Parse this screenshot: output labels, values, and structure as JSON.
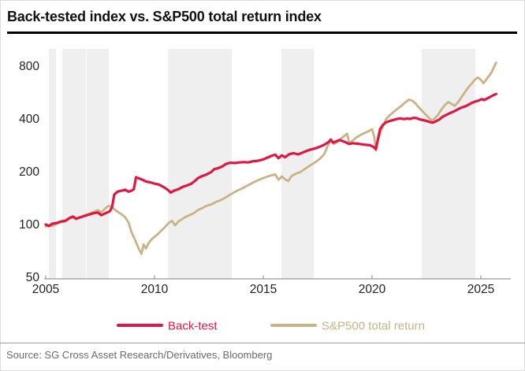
{
  "title": "Back-tested index vs. S&P500 total return index",
  "source": "Source: SG Cross Asset Research/Derivatives, Bloomberg",
  "colors": {
    "backtest": "#de1843",
    "sp500": "#c9b386",
    "band": "#f0efef",
    "axis": "#999999",
    "tick_label": "#222222",
    "title_text": "#111111",
    "source_text": "#6b6b6b"
  },
  "chart_data": {
    "type": "line",
    "title": "Back-tested index vs. S&P500 total return index",
    "y_scale": "log",
    "xlabel": "",
    "ylabel": "",
    "x_ticks": [
      2005,
      2010,
      2015,
      2020,
      2025
    ],
    "y_ticks": [
      50,
      100,
      200,
      400,
      800
    ],
    "xlim": [
      2004.9,
      2026.3
    ],
    "ylim": [
      50,
      900
    ],
    "grid": false,
    "legend_position": "bottom",
    "bands": [
      [
        2005.14,
        2005.47
      ],
      [
        2005.76,
        2006.85
      ],
      [
        2006.88,
        2007.9
      ],
      [
        2010.62,
        2013.55
      ],
      [
        2015.83,
        2017.32
      ],
      [
        2022.28,
        2024.75
      ]
    ],
    "series": [
      {
        "name": "Back-test",
        "color": "#de1843",
        "width": 3.2,
        "points": [
          [
            2005.0,
            100
          ],
          [
            2005.15,
            98
          ],
          [
            2005.3,
            101
          ],
          [
            2005.5,
            102
          ],
          [
            2005.7,
            104
          ],
          [
            2005.9,
            105
          ],
          [
            2006.1,
            109
          ],
          [
            2006.25,
            111
          ],
          [
            2006.4,
            108
          ],
          [
            2006.6,
            110
          ],
          [
            2006.8,
            112
          ],
          [
            2007.0,
            114
          ],
          [
            2007.2,
            116
          ],
          [
            2007.4,
            117
          ],
          [
            2007.55,
            113
          ],
          [
            2007.75,
            116
          ],
          [
            2007.95,
            119
          ],
          [
            2008.05,
            126
          ],
          [
            2008.15,
            148
          ],
          [
            2008.3,
            154
          ],
          [
            2008.5,
            156
          ],
          [
            2008.65,
            158
          ],
          [
            2008.8,
            154
          ],
          [
            2008.95,
            156
          ],
          [
            2009.05,
            159
          ],
          [
            2009.15,
            186
          ],
          [
            2009.3,
            183
          ],
          [
            2009.45,
            180
          ],
          [
            2009.6,
            176
          ],
          [
            2009.8,
            174
          ],
          [
            2010.0,
            171
          ],
          [
            2010.2,
            169
          ],
          [
            2010.4,
            164
          ],
          [
            2010.6,
            158
          ],
          [
            2010.75,
            152
          ],
          [
            2010.9,
            156
          ],
          [
            2011.1,
            159
          ],
          [
            2011.3,
            164
          ],
          [
            2011.5,
            167
          ],
          [
            2011.7,
            171
          ],
          [
            2011.85,
            177
          ],
          [
            2012.0,
            184
          ],
          [
            2012.2,
            189
          ],
          [
            2012.4,
            193
          ],
          [
            2012.6,
            199
          ],
          [
            2012.75,
            207
          ],
          [
            2012.9,
            209
          ],
          [
            2013.1,
            214
          ],
          [
            2013.3,
            222
          ],
          [
            2013.5,
            225
          ],
          [
            2013.7,
            224
          ],
          [
            2013.9,
            226
          ],
          [
            2014.1,
            227
          ],
          [
            2014.3,
            226
          ],
          [
            2014.5,
            229
          ],
          [
            2014.75,
            231
          ],
          [
            2015.0,
            235
          ],
          [
            2015.2,
            241
          ],
          [
            2015.4,
            247
          ],
          [
            2015.55,
            250
          ],
          [
            2015.7,
            239
          ],
          [
            2015.85,
            248
          ],
          [
            2016.0,
            242
          ],
          [
            2016.2,
            252
          ],
          [
            2016.4,
            255
          ],
          [
            2016.6,
            251
          ],
          [
            2016.8,
            257
          ],
          [
            2017.0,
            263
          ],
          [
            2017.2,
            268
          ],
          [
            2017.4,
            272
          ],
          [
            2017.6,
            278
          ],
          [
            2017.8,
            285
          ],
          [
            2018.0,
            295
          ],
          [
            2018.1,
            305
          ],
          [
            2018.2,
            293
          ],
          [
            2018.35,
            298
          ],
          [
            2018.5,
            303
          ],
          [
            2018.65,
            299
          ],
          [
            2018.8,
            294
          ],
          [
            2018.95,
            288
          ],
          [
            2019.1,
            291
          ],
          [
            2019.3,
            289
          ],
          [
            2019.5,
            287
          ],
          [
            2019.7,
            285
          ],
          [
            2019.9,
            283
          ],
          [
            2020.05,
            278
          ],
          [
            2020.17,
            269
          ],
          [
            2020.27,
            308
          ],
          [
            2020.37,
            350
          ],
          [
            2020.5,
            370
          ],
          [
            2020.65,
            383
          ],
          [
            2020.8,
            389
          ],
          [
            2021.0,
            395
          ],
          [
            2021.15,
            400
          ],
          [
            2021.3,
            403
          ],
          [
            2021.45,
            399
          ],
          [
            2021.6,
            402
          ],
          [
            2021.75,
            400
          ],
          [
            2021.9,
            406
          ],
          [
            2022.05,
            404
          ],
          [
            2022.2,
            397
          ],
          [
            2022.35,
            394
          ],
          [
            2022.5,
            390
          ],
          [
            2022.65,
            384
          ],
          [
            2022.8,
            381
          ],
          [
            2022.95,
            389
          ],
          [
            2023.1,
            398
          ],
          [
            2023.25,
            412
          ],
          [
            2023.4,
            421
          ],
          [
            2023.55,
            430
          ],
          [
            2023.7,
            438
          ],
          [
            2023.85,
            447
          ],
          [
            2024.0,
            458
          ],
          [
            2024.15,
            466
          ],
          [
            2024.3,
            473
          ],
          [
            2024.45,
            484
          ],
          [
            2024.6,
            495
          ],
          [
            2024.75,
            503
          ],
          [
            2024.9,
            509
          ],
          [
            2025.05,
            519
          ],
          [
            2025.15,
            512
          ],
          [
            2025.3,
            524
          ],
          [
            2025.45,
            536
          ],
          [
            2025.55,
            545
          ],
          [
            2025.7,
            555
          ]
        ]
      },
      {
        "name": "S&P500 total return",
        "color": "#c9b386",
        "width": 2.8,
        "points": [
          [
            2005.0,
            97
          ],
          [
            2005.15,
            99
          ],
          [
            2005.3,
            98
          ],
          [
            2005.5,
            101
          ],
          [
            2005.7,
            103
          ],
          [
            2005.9,
            104
          ],
          [
            2006.1,
            108
          ],
          [
            2006.25,
            110
          ],
          [
            2006.4,
            107
          ],
          [
            2006.6,
            110
          ],
          [
            2006.8,
            113
          ],
          [
            2007.0,
            115
          ],
          [
            2007.2,
            118
          ],
          [
            2007.4,
            121
          ],
          [
            2007.55,
            117
          ],
          [
            2007.75,
            124
          ],
          [
            2007.9,
            128
          ],
          [
            2008.05,
            125
          ],
          [
            2008.2,
            121
          ],
          [
            2008.35,
            117
          ],
          [
            2008.5,
            114
          ],
          [
            2008.65,
            110
          ],
          [
            2008.8,
            103
          ],
          [
            2008.95,
            90
          ],
          [
            2009.1,
            82
          ],
          [
            2009.25,
            74
          ],
          [
            2009.4,
            68
          ],
          [
            2009.5,
            77
          ],
          [
            2009.6,
            73
          ],
          [
            2009.75,
            79
          ],
          [
            2009.9,
            83
          ],
          [
            2010.1,
            87
          ],
          [
            2010.3,
            92
          ],
          [
            2010.5,
            97
          ],
          [
            2010.65,
            102
          ],
          [
            2010.8,
            105
          ],
          [
            2010.95,
            99
          ],
          [
            2011.1,
            104
          ],
          [
            2011.25,
            107
          ],
          [
            2011.4,
            110
          ],
          [
            2011.6,
            113
          ],
          [
            2011.8,
            116
          ],
          [
            2012.0,
            121
          ],
          [
            2012.2,
            124
          ],
          [
            2012.4,
            128
          ],
          [
            2012.6,
            130
          ],
          [
            2012.8,
            134
          ],
          [
            2013.0,
            137
          ],
          [
            2013.2,
            141
          ],
          [
            2013.4,
            146
          ],
          [
            2013.6,
            151
          ],
          [
            2013.8,
            156
          ],
          [
            2014.0,
            160
          ],
          [
            2014.2,
            165
          ],
          [
            2014.4,
            170
          ],
          [
            2014.6,
            175
          ],
          [
            2014.8,
            180
          ],
          [
            2015.0,
            184
          ],
          [
            2015.2,
            188
          ],
          [
            2015.4,
            191
          ],
          [
            2015.55,
            193
          ],
          [
            2015.7,
            180
          ],
          [
            2015.85,
            188
          ],
          [
            2016.0,
            181
          ],
          [
            2016.15,
            177
          ],
          [
            2016.3,
            189
          ],
          [
            2016.5,
            195
          ],
          [
            2016.7,
            199
          ],
          [
            2016.85,
            205
          ],
          [
            2017.0,
            211
          ],
          [
            2017.2,
            219
          ],
          [
            2017.4,
            227
          ],
          [
            2017.6,
            237
          ],
          [
            2017.8,
            252
          ],
          [
            2017.95,
            278
          ],
          [
            2018.05,
            295
          ],
          [
            2018.15,
            302
          ],
          [
            2018.25,
            288
          ],
          [
            2018.4,
            295
          ],
          [
            2018.55,
            308
          ],
          [
            2018.7,
            318
          ],
          [
            2018.85,
            330
          ],
          [
            2018.95,
            292
          ],
          [
            2019.1,
            300
          ],
          [
            2019.25,
            312
          ],
          [
            2019.4,
            320
          ],
          [
            2019.55,
            328
          ],
          [
            2019.7,
            334
          ],
          [
            2019.85,
            341
          ],
          [
            2020.0,
            350
          ],
          [
            2020.1,
            315
          ],
          [
            2020.18,
            264
          ],
          [
            2020.28,
            305
          ],
          [
            2020.4,
            340
          ],
          [
            2020.5,
            362
          ],
          [
            2020.65,
            400
          ],
          [
            2020.8,
            418
          ],
          [
            2021.0,
            440
          ],
          [
            2021.15,
            455
          ],
          [
            2021.3,
            470
          ],
          [
            2021.45,
            488
          ],
          [
            2021.6,
            505
          ],
          [
            2021.7,
            516
          ],
          [
            2021.85,
            508
          ],
          [
            2022.0,
            490
          ],
          [
            2022.15,
            465
          ],
          [
            2022.3,
            445
          ],
          [
            2022.45,
            425
          ],
          [
            2022.6,
            408
          ],
          [
            2022.75,
            391
          ],
          [
            2022.9,
            405
          ],
          [
            2023.05,
            425
          ],
          [
            2023.2,
            455
          ],
          [
            2023.35,
            480
          ],
          [
            2023.5,
            500
          ],
          [
            2023.65,
            488
          ],
          [
            2023.8,
            475
          ],
          [
            2023.95,
            498
          ],
          [
            2024.1,
            530
          ],
          [
            2024.25,
            565
          ],
          [
            2024.4,
            600
          ],
          [
            2024.55,
            630
          ],
          [
            2024.7,
            665
          ],
          [
            2024.85,
            690
          ],
          [
            2025.0,
            668
          ],
          [
            2025.12,
            640
          ],
          [
            2025.25,
            672
          ],
          [
            2025.4,
            710
          ],
          [
            2025.5,
            742
          ],
          [
            2025.6,
            790
          ],
          [
            2025.7,
            838
          ]
        ]
      }
    ]
  }
}
